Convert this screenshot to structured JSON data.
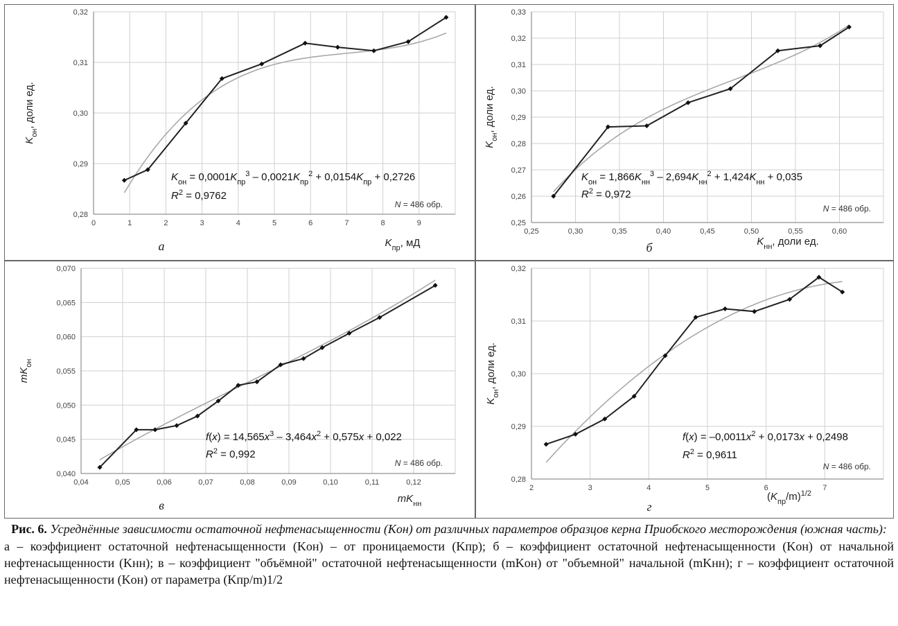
{
  "caption": {
    "label": "Рис. 6.",
    "title": "Усреднённые зависимости остаточной нефтенасыщенности (Kон) от различных параметров образцов керна Приобского месторождения (южная часть):",
    "description": "а – коэффициент остаточной нефтенасыщенности (Kон) – от проницаемости (Kпр); б – коэффициент остаточной нефтенасыщенности (Kон) от начальной нефтенасыщенности (Kнн); в – коэффициент \"объёмной\" остаточной нефтенасыщенности (mKон) от \"объемной\" начальной (mKнн); г – коэффициент остаточной нефтенасыщенности (Kон) от параметра (Kпр/m)1/2"
  },
  "chart_data": [
    {
      "type": "line",
      "panel_label": "а",
      "xlabel": "Kпр, мД",
      "ylabel": "Kон, доли ед.",
      "xlim": [
        0,
        10
      ],
      "ylim": [
        0.28,
        0.32
      ],
      "xticks": [
        "0",
        "1",
        "2",
        "3",
        "4",
        "5",
        "6",
        "7",
        "8",
        "9"
      ],
      "yticks": [
        "0,28",
        "0,29",
        "0,30",
        "0,31",
        "0,32"
      ],
      "grid": true,
      "series": [
        {
          "x": [
            0.85,
            1.5,
            2.55,
            3.55,
            4.65,
            5.85,
            6.75,
            7.75,
            8.7,
            9.75
          ],
          "y": [
            0.2867,
            0.2888,
            0.298,
            0.3068,
            0.3097,
            0.3138,
            0.313,
            0.3123,
            0.3141,
            0.3189
          ]
        }
      ],
      "trendline": {
        "type": "poly3",
        "coefficients": [
          0.0001,
          -0.0021,
          0.0154,
          0.2726
        ]
      },
      "equation": "Kон = 0,0001Kпр³ – 0,0021Kпр² + 0,0154Kпр + 0,2726",
      "r2": "R² = 0,9762",
      "n_label": "N = 486 обр."
    },
    {
      "type": "line",
      "panel_label": "б",
      "xlabel": "Kнн, доли ед.",
      "ylabel": "Kон, доли ед.",
      "xlim": [
        0.25,
        0.65
      ],
      "ylim": [
        0.25,
        0.33
      ],
      "xticks": [
        "0,25",
        "0,30",
        "0,35",
        "0,40",
        "0,45",
        "0,50",
        "0,55",
        "0,60"
      ],
      "yticks": [
        "0,25",
        "0,26",
        "0,27",
        "0,28",
        "0,29",
        "0,30",
        "0,31",
        "0,32",
        "0,33"
      ],
      "grid": true,
      "series": [
        {
          "x": [
            0.275,
            0.337,
            0.381,
            0.428,
            0.476,
            0.53,
            0.578,
            0.611
          ],
          "y": [
            0.26,
            0.2863,
            0.2867,
            0.2955,
            0.3008,
            0.3152,
            0.3171,
            0.3242
          ]
        }
      ],
      "trendline": {
        "type": "poly3",
        "coefficients": [
          1.866,
          -2.694,
          1.424,
          0.035
        ]
      },
      "equation": "Kон = 1,866Kнн³ – 2,694Kнн² + 1,424Kнн + 0,035",
      "r2": "R² = 0,972",
      "n_label": "N = 486 обр."
    },
    {
      "type": "line",
      "panel_label": "в",
      "xlabel": "mKнн",
      "ylabel": "mKон",
      "xlim": [
        0.04,
        0.13
      ],
      "ylim": [
        0.04,
        0.07
      ],
      "xticks": [
        "0,04",
        "0,05",
        "0,06",
        "0,07",
        "0,08",
        "0,09",
        "0,10",
        "0,11",
        "0,12"
      ],
      "yticks": [
        "0,040",
        "0,045",
        "0,050",
        "0,055",
        "0,060",
        "0,065",
        "0,070"
      ],
      "grid": true,
      "series": [
        {
          "x": [
            0.0445,
            0.0533,
            0.0578,
            0.063,
            0.068,
            0.073,
            0.0778,
            0.0823,
            0.088,
            0.0935,
            0.098,
            0.1045,
            0.1118,
            0.1252
          ],
          "y": [
            0.0409,
            0.0464,
            0.0464,
            0.047,
            0.0484,
            0.0506,
            0.0529,
            0.0534,
            0.0559,
            0.0568,
            0.0584,
            0.0605,
            0.0628,
            0.0675
          ]
        }
      ],
      "trendline": {
        "type": "poly3",
        "coefficients": [
          14.565,
          -3.464,
          0.575,
          0.022
        ]
      },
      "equation": "f(x) = 14,565x³ – 3,464x² + 0,575x + 0,022",
      "r2": "R² = 0,992",
      "n_label": "N = 486 обр."
    },
    {
      "type": "line",
      "panel_label": "г",
      "xlabel": "(Kпр/m)1/2",
      "ylabel": "Kон, доли ед.",
      "xlim": [
        2,
        8
      ],
      "ylim": [
        0.28,
        0.32
      ],
      "xticks": [
        "2",
        "3",
        "4",
        "5",
        "6",
        "7"
      ],
      "yticks": [
        "0,28",
        "0,29",
        "0,30",
        "0,31",
        "0,32"
      ],
      "grid": true,
      "series": [
        {
          "x": [
            2.25,
            2.75,
            3.25,
            3.75,
            4.28,
            4.8,
            5.3,
            5.8,
            6.4,
            6.9,
            7.3
          ],
          "y": [
            0.2866,
            0.2885,
            0.2914,
            0.2957,
            0.3034,
            0.3107,
            0.3123,
            0.3118,
            0.3141,
            0.3183,
            0.3155
          ]
        }
      ],
      "trendline": {
        "type": "poly2",
        "coefficients": [
          -0.0011,
          0.0173,
          0.2498
        ]
      },
      "equation": "f(x) = –0,0011x² + 0,0173x + 0,2498",
      "r2": "R² = 0,9611",
      "n_label": "N = 486 обр."
    }
  ]
}
